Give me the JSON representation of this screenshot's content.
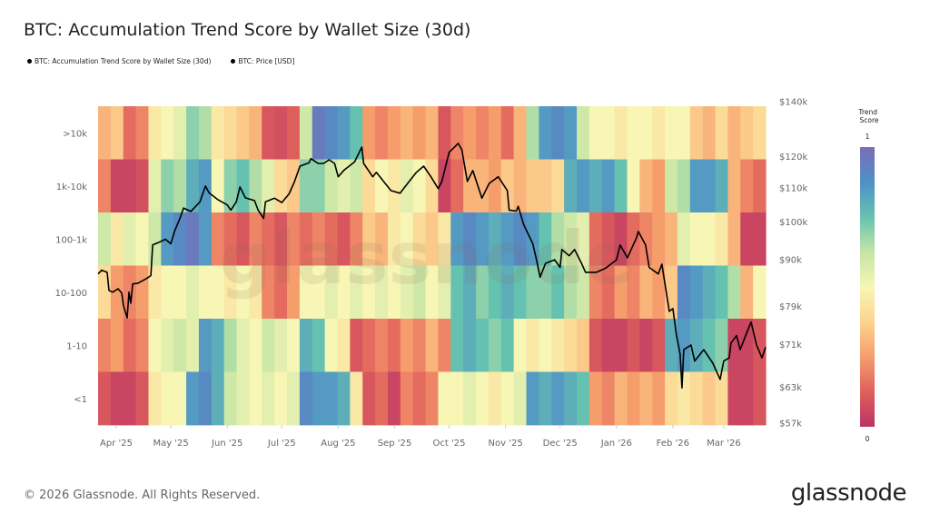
{
  "title": "BTC: Accumulation Trend Score by Wallet Size (30d)",
  "legend": [
    {
      "label": "BTC: Accumulation Trend Score by Wallet Size (30d)",
      "color": "#000000"
    },
    {
      "label": "BTC: Price [USD]",
      "color": "#000000"
    }
  ],
  "footer": "© 2026 Glassnode. All Rights Reserved.",
  "logo": "glassnode",
  "watermark": "glassnode",
  "chart_data": {
    "type": "heatmap",
    "x_range": [
      "2025-03-22",
      "2026-03-24"
    ],
    "x_ticks": [
      {
        "date": "2025-04-01",
        "label": "Apr '25"
      },
      {
        "date": "2025-05-01",
        "label": "May '25"
      },
      {
        "date": "2025-06-01",
        "label": "Jun '25"
      },
      {
        "date": "2025-07-01",
        "label": "Jul '25"
      },
      {
        "date": "2025-08-01",
        "label": "Aug '25"
      },
      {
        "date": "2025-09-01",
        "label": "Sep '25"
      },
      {
        "date": "2025-10-01",
        "label": "Oct '25"
      },
      {
        "date": "2025-11-01",
        "label": "Nov '25"
      },
      {
        "date": "2025-12-01",
        "label": "Dec '25"
      },
      {
        "date": "2026-01-01",
        "label": "Jan '26"
      },
      {
        "date": "2026-02-01",
        "label": "Feb '26"
      },
      {
        "date": "2026-03-01",
        "label": "Mar '26"
      }
    ],
    "heatmap": {
      "colorbar_title": "Trend Score",
      "colorbar_max_label": "1",
      "colorbar_min_label": "0",
      "range": [
        0,
        1
      ],
      "colors": [
        "#b93364",
        "#e0605c",
        "#f59e6c",
        "#fcd490",
        "#f7f6b4",
        "#c4e5a5",
        "#66c2b0",
        "#4f90c7",
        "#7b6db5"
      ],
      "column_resolution": "weekly",
      "rows": [
        {
          "label": ">10k",
          "values": [
            0.3,
            0.35,
            0.15,
            0.2,
            0.45,
            0.5,
            0.55,
            0.7,
            0.65,
            0.45,
            0.4,
            0.35,
            0.3,
            0.1,
            0.08,
            0.12,
            0.6,
            0.95,
            0.9,
            0.85,
            0.75,
            0.25,
            0.2,
            0.25,
            0.3,
            0.25,
            0.3,
            0.1,
            0.2,
            0.25,
            0.2,
            0.25,
            0.15,
            0.3,
            0.65,
            0.85,
            0.9,
            0.85,
            0.6,
            0.5,
            0.5,
            0.45,
            0.5,
            0.5,
            0.45,
            0.5,
            0.5,
            0.35,
            0.3,
            0.4,
            0.3,
            0.35,
            0.4
          ]
        },
        {
          "label": "1k-10k",
          "values": [
            0.2,
            0.05,
            0.05,
            0.08,
            0.55,
            0.7,
            0.65,
            0.8,
            0.85,
            0.5,
            0.7,
            0.75,
            0.65,
            0.55,
            0.4,
            0.35,
            0.7,
            0.7,
            0.6,
            0.55,
            0.6,
            0.4,
            0.5,
            0.45,
            0.55,
            0.5,
            0.4,
            0.05,
            0.15,
            0.3,
            0.3,
            0.25,
            0.35,
            0.3,
            0.35,
            0.35,
            0.4,
            0.8,
            0.85,
            0.8,
            0.85,
            0.75,
            0.5,
            0.3,
            0.25,
            0.6,
            0.65,
            0.85,
            0.85,
            0.8,
            0.3,
            0.2,
            0.15
          ]
        },
        {
          "label": "100-1k",
          "values": [
            0.6,
            0.45,
            0.55,
            0.5,
            0.6,
            0.85,
            0.9,
            0.95,
            0.85,
            0.2,
            0.15,
            0.1,
            0.2,
            0.15,
            0.1,
            0.2,
            0.15,
            0.2,
            0.15,
            0.1,
            0.2,
            0.35,
            0.3,
            0.45,
            0.5,
            0.4,
            0.35,
            0.45,
            0.85,
            0.9,
            0.85,
            0.8,
            0.85,
            0.9,
            0.85,
            0.75,
            0.65,
            0.6,
            0.55,
            0.15,
            0.1,
            0.05,
            0.15,
            0.2,
            0.25,
            0.3,
            0.55,
            0.5,
            0.5,
            0.45,
            0.3,
            0.05,
            0.05
          ]
        },
        {
          "label": "10-100",
          "values": [
            0.4,
            0.25,
            0.2,
            0.25,
            0.45,
            0.5,
            0.5,
            0.55,
            0.5,
            0.5,
            0.45,
            0.5,
            0.45,
            0.2,
            0.15,
            0.25,
            0.5,
            0.5,
            0.55,
            0.5,
            0.55,
            0.5,
            0.55,
            0.5,
            0.55,
            0.6,
            0.5,
            0.55,
            0.75,
            0.8,
            0.7,
            0.75,
            0.8,
            0.75,
            0.7,
            0.7,
            0.75,
            0.65,
            0.6,
            0.2,
            0.15,
            0.25,
            0.2,
            0.3,
            0.25,
            0.35,
            0.9,
            0.85,
            0.8,
            0.75,
            0.65,
            0.3,
            0.5
          ]
        },
        {
          "label": "1-10",
          "values": [
            0.2,
            0.25,
            0.15,
            0.2,
            0.5,
            0.55,
            0.6,
            0.55,
            0.85,
            0.8,
            0.65,
            0.55,
            0.5,
            0.6,
            0.55,
            0.5,
            0.8,
            0.75,
            0.5,
            0.45,
            0.1,
            0.15,
            0.2,
            0.15,
            0.25,
            0.2,
            0.3,
            0.2,
            0.75,
            0.8,
            0.75,
            0.7,
            0.75,
            0.5,
            0.45,
            0.5,
            0.45,
            0.4,
            0.35,
            0.1,
            0.05,
            0.05,
            0.1,
            0.05,
            0.1,
            0.8,
            0.85,
            0.8,
            0.75,
            0.7,
            0.05,
            0.05,
            0.1
          ]
        },
        {
          "label": "<1",
          "values": [
            0.1,
            0.05,
            0.05,
            0.1,
            0.45,
            0.5,
            0.5,
            0.85,
            0.9,
            0.8,
            0.6,
            0.55,
            0.5,
            0.55,
            0.5,
            0.55,
            0.9,
            0.85,
            0.85,
            0.8,
            0.45,
            0.1,
            0.15,
            0.05,
            0.2,
            0.15,
            0.2,
            0.5,
            0.5,
            0.55,
            0.5,
            0.45,
            0.5,
            0.55,
            0.85,
            0.8,
            0.85,
            0.8,
            0.75,
            0.25,
            0.2,
            0.3,
            0.25,
            0.3,
            0.25,
            0.4,
            0.45,
            0.4,
            0.35,
            0.4,
            0.05,
            0.05,
            0.1
          ]
        }
      ]
    },
    "price": {
      "name": "BTC: Price [USD]",
      "color": "#000000",
      "scale": "log",
      "ylim": [
        57000,
        140000
      ],
      "y_ticks": [
        {
          "value": 140000,
          "label": "$140k"
        },
        {
          "value": 120000,
          "label": "$120k"
        },
        {
          "value": 110000,
          "label": "$110k"
        },
        {
          "value": 100000,
          "label": "$100k"
        },
        {
          "value": 90000,
          "label": "$90k"
        },
        {
          "value": 79000,
          "label": "$79k"
        },
        {
          "value": 71000,
          "label": "$71k"
        },
        {
          "value": 63000,
          "label": "$63k"
        },
        {
          "value": 57000,
          "label": "$57k"
        }
      ],
      "points": [
        [
          "2025-03-22",
          86500
        ],
        [
          "2025-03-24",
          87400
        ],
        [
          "2025-03-27",
          86900
        ],
        [
          "2025-03-28",
          82600
        ],
        [
          "2025-03-30",
          82200
        ],
        [
          "2025-04-02",
          83000
        ],
        [
          "2025-04-04",
          82000
        ],
        [
          "2025-04-05",
          79100
        ],
        [
          "2025-04-07",
          76500
        ],
        [
          "2025-04-08",
          82200
        ],
        [
          "2025-04-09",
          79700
        ],
        [
          "2025-04-10",
          84100
        ],
        [
          "2025-04-13",
          84300
        ],
        [
          "2025-04-18",
          85500
        ],
        [
          "2025-04-20",
          86100
        ],
        [
          "2025-04-21",
          93800
        ],
        [
          "2025-04-24",
          94400
        ],
        [
          "2025-04-28",
          95300
        ],
        [
          "2025-05-01",
          94100
        ],
        [
          "2025-05-03",
          97400
        ],
        [
          "2025-05-06",
          101000
        ],
        [
          "2025-05-08",
          104000
        ],
        [
          "2025-05-12",
          103000
        ],
        [
          "2025-05-17",
          105800
        ],
        [
          "2025-05-20",
          110600
        ],
        [
          "2025-05-22",
          108500
        ],
        [
          "2025-05-27",
          106400
        ],
        [
          "2025-06-01",
          104900
        ],
        [
          "2025-06-03",
          103400
        ],
        [
          "2025-06-06",
          105800
        ],
        [
          "2025-06-08",
          110300
        ],
        [
          "2025-06-11",
          107000
        ],
        [
          "2025-06-16",
          106200
        ],
        [
          "2025-06-18",
          103400
        ],
        [
          "2025-06-21",
          101000
        ],
        [
          "2025-06-22",
          105800
        ],
        [
          "2025-06-27",
          106900
        ],
        [
          "2025-07-01",
          105600
        ],
        [
          "2025-07-05",
          108200
        ],
        [
          "2025-07-08",
          112000
        ],
        [
          "2025-07-11",
          116900
        ],
        [
          "2025-07-16",
          118000
        ],
        [
          "2025-07-17",
          119400
        ],
        [
          "2025-07-21",
          117800
        ],
        [
          "2025-07-24",
          117800
        ],
        [
          "2025-07-27",
          119000
        ],
        [
          "2025-07-30",
          117800
        ],
        [
          "2025-08-01",
          113500
        ],
        [
          "2025-08-04",
          115500
        ],
        [
          "2025-08-10",
          118300
        ],
        [
          "2025-08-14",
          123300
        ],
        [
          "2025-08-15",
          117800
        ],
        [
          "2025-08-20",
          113500
        ],
        [
          "2025-08-22",
          114900
        ],
        [
          "2025-08-30",
          109200
        ],
        [
          "2025-09-04",
          108400
        ],
        [
          "2025-09-09",
          112000
        ],
        [
          "2025-09-13",
          114900
        ],
        [
          "2025-09-17",
          116900
        ],
        [
          "2025-09-21",
          113500
        ],
        [
          "2025-09-25",
          109800
        ],
        [
          "2025-09-27",
          112000
        ],
        [
          "2025-10-01",
          121500
        ],
        [
          "2025-10-06",
          124600
        ],
        [
          "2025-10-08",
          122400
        ],
        [
          "2025-10-11",
          112000
        ],
        [
          "2025-10-14",
          115500
        ],
        [
          "2025-10-19",
          106900
        ],
        [
          "2025-10-23",
          111400
        ],
        [
          "2025-10-28",
          113500
        ],
        [
          "2025-11-02",
          109200
        ],
        [
          "2025-11-03",
          103400
        ],
        [
          "2025-11-07",
          103100
        ],
        [
          "2025-11-08",
          104500
        ],
        [
          "2025-11-11",
          99300
        ],
        [
          "2025-11-16",
          94100
        ],
        [
          "2025-11-18",
          90000
        ],
        [
          "2025-11-20",
          85700
        ],
        [
          "2025-11-23",
          89100
        ],
        [
          "2025-11-28",
          90000
        ],
        [
          "2025-12-01",
          88100
        ],
        [
          "2025-12-02",
          92600
        ],
        [
          "2025-12-06",
          91000
        ],
        [
          "2025-12-09",
          92600
        ],
        [
          "2025-12-13",
          88900
        ],
        [
          "2025-12-15",
          86900
        ],
        [
          "2025-12-21",
          86900
        ],
        [
          "2025-12-26",
          87900
        ],
        [
          "2026-01-01",
          90000
        ],
        [
          "2026-01-03",
          93800
        ],
        [
          "2026-01-07",
          90500
        ],
        [
          "2026-01-12",
          95700
        ],
        [
          "2026-01-13",
          97400
        ],
        [
          "2026-01-17",
          93800
        ],
        [
          "2026-01-19",
          88100
        ],
        [
          "2026-01-24",
          86500
        ],
        [
          "2026-01-26",
          88900
        ],
        [
          "2026-01-30",
          77900
        ],
        [
          "2026-02-01",
          78500
        ],
        [
          "2026-02-03",
          72800
        ],
        [
          "2026-02-05",
          69100
        ],
        [
          "2026-02-06",
          62900
        ],
        [
          "2026-02-07",
          70000
        ],
        [
          "2026-02-11",
          70900
        ],
        [
          "2026-02-13",
          67800
        ],
        [
          "2026-02-18",
          70000
        ],
        [
          "2026-02-23",
          67400
        ],
        [
          "2026-02-27",
          64400
        ],
        [
          "2026-03-01",
          67800
        ],
        [
          "2026-03-04",
          68400
        ],
        [
          "2026-03-05",
          71300
        ],
        [
          "2026-03-08",
          72800
        ],
        [
          "2026-03-10",
          70000
        ],
        [
          "2026-03-13",
          72800
        ],
        [
          "2026-03-16",
          75600
        ],
        [
          "2026-03-19",
          70900
        ],
        [
          "2026-03-22",
          68400
        ],
        [
          "2026-03-24",
          70500
        ]
      ]
    }
  }
}
